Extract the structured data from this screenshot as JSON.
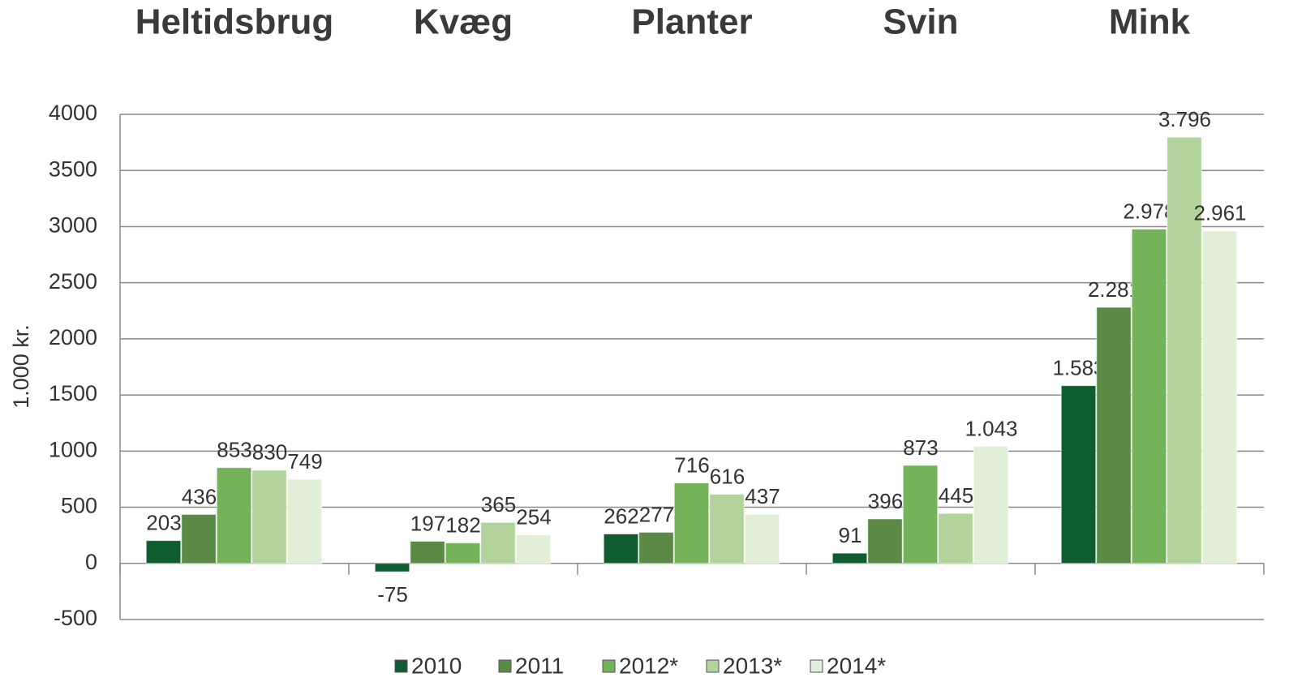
{
  "chart_data": {
    "type": "bar",
    "y_label": "1.000 kr.",
    "categories": [
      "Heltidsbrug",
      "Kvæg",
      "Planter",
      "Svin",
      "Mink"
    ],
    "series": [
      {
        "name": "2010",
        "color": "#0e5c2f",
        "values": [
          203,
          -75,
          262,
          91,
          1583
        ],
        "value_labels": [
          "203",
          "-75",
          "262",
          "91",
          "1.583"
        ]
      },
      {
        "name": "2011",
        "color": "#5a8a45",
        "values": [
          436,
          197,
          277,
          396,
          2281
        ],
        "value_labels": [
          "436",
          "197",
          "277",
          "396",
          "2.281"
        ]
      },
      {
        "name": "2012*",
        "color": "#74b35a",
        "values": [
          853,
          182,
          716,
          873,
          2978
        ],
        "value_labels": [
          "853",
          "182",
          "716",
          "873",
          "2.978"
        ]
      },
      {
        "name": "2013*",
        "color": "#b2d49c",
        "values": [
          830,
          365,
          616,
          445,
          3796
        ],
        "value_labels": [
          "830",
          "365",
          "616",
          "445",
          "3.796"
        ]
      },
      {
        "name": "2014*",
        "color": "#e2efd8",
        "values": [
          749,
          254,
          437,
          1043,
          2961
        ],
        "value_labels": [
          "749",
          "254",
          "437",
          "1.043",
          "2.961"
        ]
      }
    ],
    "ylim": [
      -500,
      4000
    ],
    "yticks": [
      -500,
      0,
      500,
      1000,
      1500,
      2000,
      2500,
      3000,
      3500,
      4000
    ],
    "grid": true,
    "legend": "bottom"
  }
}
